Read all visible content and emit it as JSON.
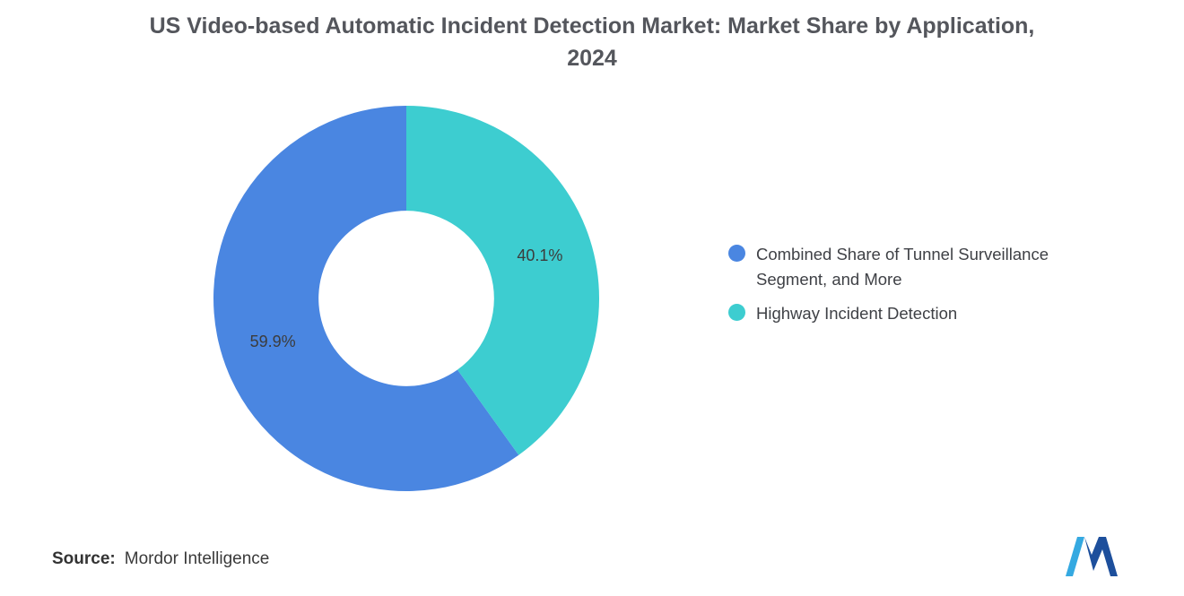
{
  "title": "US Video-based Automatic Incident Detection Market: Market Share by Application, 2024",
  "chart_data": {
    "type": "pie",
    "subtype": "donut",
    "title": "US Video-based Automatic Incident Detection Market: Market Share by Application, 2024",
    "categories": [
      "Combined Share of Tunnel Surveillance Segment, and More",
      "Highway Incident Detection"
    ],
    "values": [
      59.9,
      40.1
    ],
    "labels": [
      "59.9%",
      "40.1%"
    ],
    "colors": [
      "#4A86E1",
      "#3DCDD0"
    ],
    "start_angle_deg": -90,
    "direction": "counterclockwise",
    "inner_radius_ratio": 0.455,
    "legend_position": "right"
  },
  "legend": {
    "items": [
      {
        "label": "Combined Share of Tunnel Surveillance Segment, and More",
        "color": "#4A86E1"
      },
      {
        "label": "Highway Incident Detection",
        "color": "#3DCDD0"
      }
    ]
  },
  "source": {
    "prefix": "Source:",
    "text": "Mordor Intelligence"
  },
  "logo": {
    "name": "mordor-intelligence-logo",
    "colors": {
      "light": "#35A9E1",
      "dark": "#1D4F9C"
    }
  }
}
